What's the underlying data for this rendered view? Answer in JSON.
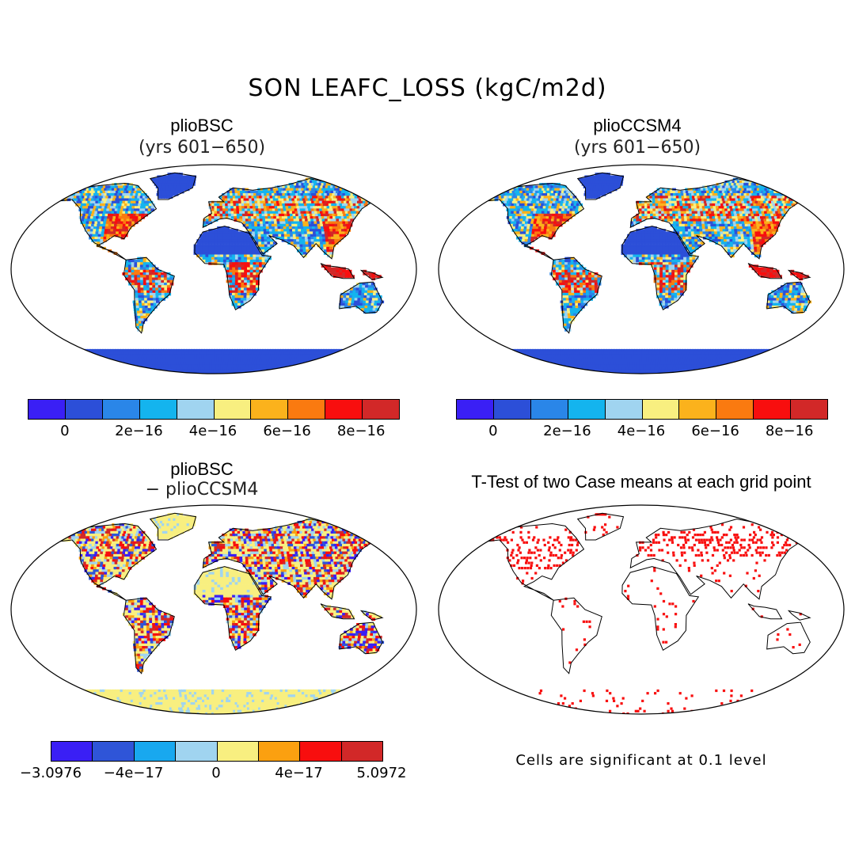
{
  "title": "SON LEAFC_LOSS (kgC/m2d)",
  "panels": [
    {
      "title": "plioBSC",
      "subtitle": "(yrs 601−650)"
    },
    {
      "title": "plioCCSM4",
      "subtitle": "(yrs 601−650)"
    },
    {
      "title": "plioBSC",
      "subtitle": "− plioCCSM4"
    },
    {
      "title": "T-Test of two Case means at each grid point",
      "subtitle": ""
    }
  ],
  "colorbar_top": {
    "colors": [
      "#3a1ff5",
      "#2c4fd8",
      "#2a86e8",
      "#14b4ee",
      "#a0d4f0",
      "#f8ef80",
      "#fbb21c",
      "#fa7a10",
      "#f80e0e",
      "#d22828"
    ],
    "ticks": [
      "0",
      "2e−16",
      "4e−16",
      "6e−16",
      "8e−16"
    ]
  },
  "colorbar_diff": {
    "colors": [
      "#3a1ff5",
      "#2f55d8",
      "#18a8ef",
      "#a0d4f0",
      "#f8ef80",
      "#fba010",
      "#f80e0e",
      "#d22828"
    ],
    "ticks": [
      "−3.0976",
      "−4e−17",
      "0",
      "4e−17",
      "5.0972"
    ]
  },
  "significance_note": "Cells are significant at 0.1 level",
  "colors": {
    "ocean": "#ffffff",
    "land_low": "#2c4fd8",
    "high": "#d22828",
    "sig": "#f80e0e"
  }
}
